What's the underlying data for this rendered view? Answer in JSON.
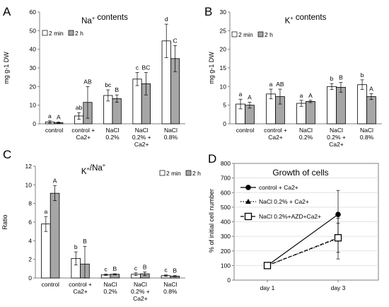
{
  "colors": {
    "white_bar": "#ffffff",
    "gray_bar": "#a6a6a6",
    "axis": "#808080",
    "grid": "#d9d9d9",
    "line": "#000000"
  },
  "chart_data": [
    {
      "panel": "A",
      "type": "bar",
      "title": "Na⁺ contents",
      "ylabel": "mg g-1 DW",
      "ylim": [
        0,
        60
      ],
      "yticks": [
        0,
        10,
        20,
        30,
        40,
        50,
        60
      ],
      "categories": [
        [
          "control"
        ],
        [
          "control +",
          "Ca2+"
        ],
        [
          "NaCl",
          "0.2%"
        ],
        [
          "NaCl",
          "0.2% +",
          "Ca2+"
        ],
        [
          "NaCl",
          "0.8%"
        ]
      ],
      "legend": [
        "2 min",
        "2 h"
      ],
      "series": [
        {
          "name": "2 min",
          "values": [
            1.0,
            4.2,
            15.2,
            24.0,
            44.5
          ],
          "errors": [
            0.6,
            1.8,
            3.0,
            3.5,
            9.0
          ],
          "letters": [
            "a",
            "ab",
            "bc",
            "c",
            "d"
          ]
        },
        {
          "name": "2 h",
          "values": [
            0.6,
            11.5,
            13.5,
            21.5,
            35.0
          ],
          "errors": [
            0.4,
            8.5,
            2.0,
            6.0,
            7.0
          ],
          "letters": [
            "A",
            "AB",
            "B",
            "BC",
            "C"
          ]
        }
      ]
    },
    {
      "panel": "B",
      "type": "bar",
      "title": "K⁺ contents",
      "ylabel": "mg g-1 DW",
      "ylim": [
        0,
        30
      ],
      "yticks": [
        0,
        5,
        10,
        15,
        20,
        25,
        30
      ],
      "categories": [
        [
          "control"
        ],
        [
          "control +",
          "Ca2+"
        ],
        [
          "NaCl",
          "0.2%"
        ],
        [
          "NaCl",
          "0.2% +",
          "Ca2+"
        ],
        [
          "NaCl",
          "0.8%"
        ]
      ],
      "legend": [
        "2 min",
        "2 h"
      ],
      "series": [
        {
          "name": "2 min",
          "values": [
            5.3,
            8.0,
            5.5,
            10.0,
            10.5
          ],
          "errors": [
            1.3,
            1.3,
            0.8,
            0.8,
            1.3
          ],
          "letters": [
            "a",
            "a",
            "a",
            "b",
            "b"
          ]
        },
        {
          "name": "2 h",
          "values": [
            5.0,
            7.3,
            6.0,
            9.8,
            7.3
          ],
          "errors": [
            0.8,
            2.0,
            0.3,
            1.3,
            0.8
          ],
          "letters": [
            "A",
            "AB",
            "A",
            "B",
            "A"
          ]
        }
      ]
    },
    {
      "panel": "C",
      "type": "bar",
      "title": "K⁺/Na⁺",
      "ylabel": "Ratio",
      "ylim": [
        0,
        12
      ],
      "yticks": [
        0,
        2,
        4,
        6,
        8,
        10,
        12
      ],
      "categories": [
        [
          "control"
        ],
        [
          "control +",
          "Ca2+"
        ],
        [
          "NaCl",
          "0.2%"
        ],
        [
          "NaCl",
          "0.2% +",
          "Ca2+"
        ],
        [
          "NaCl",
          "0.8%"
        ]
      ],
      "legend": [
        "2 min",
        "2 h"
      ],
      "series": [
        {
          "name": "2 min",
          "values": [
            5.8,
            2.1,
            0.35,
            0.4,
            0.25
          ],
          "errors": [
            0.8,
            0.7,
            0.08,
            0.15,
            0.08
          ],
          "letters": [
            "a",
            "b",
            "c",
            "c",
            "c"
          ]
        },
        {
          "name": "2 h",
          "values": [
            9.1,
            1.5,
            0.4,
            0.45,
            0.2
          ],
          "errors": [
            0.8,
            1.9,
            0.05,
            0.2,
            0.05
          ],
          "letters": [
            "A",
            "B",
            "B",
            "B",
            "B"
          ]
        }
      ]
    },
    {
      "panel": "D",
      "type": "line",
      "title": "Growth of cells",
      "ylabel": "% of initial cell number",
      "ylim": [
        0,
        800
      ],
      "yticks": [
        0,
        100,
        200,
        300,
        400,
        500,
        600,
        700,
        800
      ],
      "categories": [
        "day 1",
        "day 3"
      ],
      "series": [
        {
          "name": "control + Ca2+",
          "marker": "circle",
          "dash": "solid",
          "values": [
            100,
            450
          ],
          "errors": [
            0,
            165
          ]
        },
        {
          "name": "NaCl 0.2% + Ca2+",
          "marker": "triangle",
          "dash": "dotted",
          "values": [
            100,
            285
          ],
          "errors": [
            0,
            140
          ]
        },
        {
          "name": "NaCl 0.2%+AZD+Ca2+",
          "marker": "square",
          "dash": "dashed",
          "values": [
            100,
            290
          ],
          "errors": [
            0,
            100
          ]
        }
      ]
    }
  ]
}
